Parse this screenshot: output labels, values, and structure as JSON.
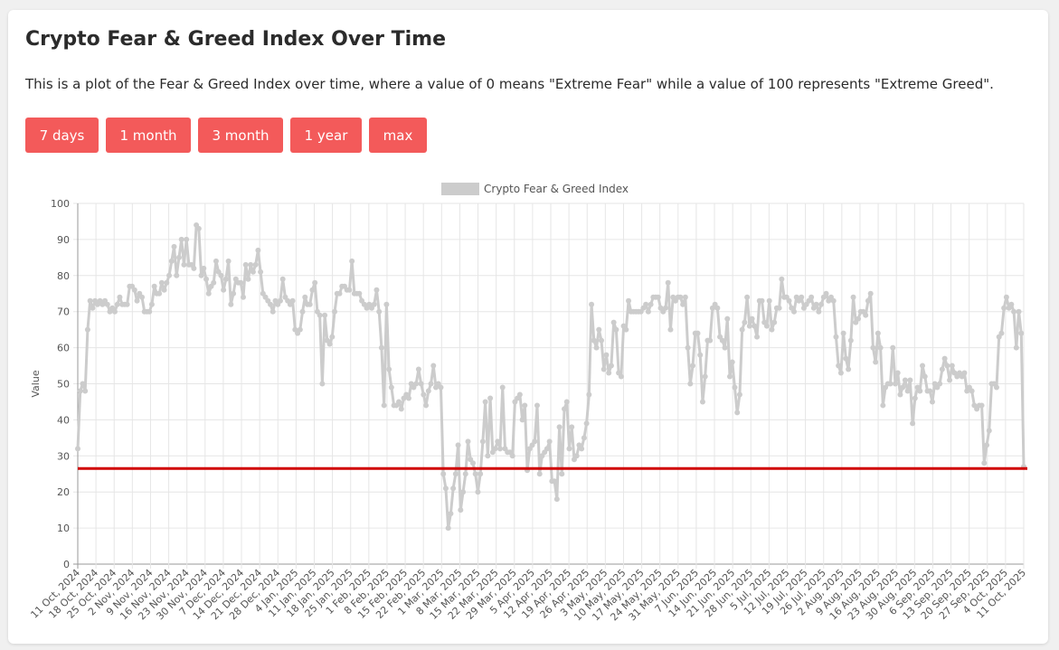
{
  "page": {
    "title": "Crypto Fear & Greed Index Over Time",
    "description": "This is a plot of the Fear & Greed Index over time, where a value of 0 means \"Extreme Fear\" while a value of 100 represents \"Extreme Greed\"."
  },
  "buttons": [
    {
      "label": "7 days"
    },
    {
      "label": "1 month"
    },
    {
      "label": "3 month"
    },
    {
      "label": "1 year"
    },
    {
      "label": "max"
    }
  ],
  "colors": {
    "button": "#f35a5a",
    "series": "#cccccc",
    "reference_line": "#d00000",
    "grid": "#e6e6e6"
  },
  "chart_data": {
    "type": "line",
    "title": "",
    "xlabel": "",
    "ylabel": "Value",
    "ylim": [
      0,
      100
    ],
    "yticks": [
      0,
      10,
      20,
      30,
      40,
      50,
      60,
      70,
      80,
      90,
      100
    ],
    "grid": true,
    "legend_position": "top",
    "x_tick_labels": [
      "11 Oct, 2024",
      "18 Oct, 2024",
      "25 Oct, 2024",
      "2 Nov, 2024",
      "9 Nov, 2024",
      "16 Nov, 2024",
      "23 Nov, 2024",
      "30 Nov, 2024",
      "7 Dec, 2024",
      "14 Dec, 2024",
      "21 Dec, 2024",
      "28 Dec, 2024",
      "4 Jan, 2025",
      "11 Jan, 2025",
      "18 Jan, 2025",
      "25 Jan, 2025",
      "1 Feb, 2025",
      "8 Feb, 2025",
      "15 Feb, 2025",
      "22 Feb, 2025",
      "1 Mar, 2025",
      "8 Mar, 2025",
      "15 Mar, 2025",
      "22 Mar, 2025",
      "29 Mar, 2025",
      "5 Apr, 2025",
      "12 Apr, 2025",
      "19 Apr, 2025",
      "26 Apr, 2025",
      "3 May, 2025",
      "10 May, 2025",
      "17 May, 2025",
      "24 May, 2025",
      "31 May, 2025",
      "7 Jun, 2025",
      "14 Jun, 2025",
      "21 Jun, 2025",
      "28 Jun, 2025",
      "5 Jul, 2025",
      "12 Jul, 2025",
      "19 Jul, 2025",
      "26 Jul, 2025",
      "2 Aug, 2025",
      "9 Aug, 2025",
      "16 Aug, 2025",
      "23 Aug, 2025",
      "30 Aug, 2025",
      "6 Sep, 2025",
      "13 Sep, 2025",
      "20 Sep, 2025",
      "27 Sep, 2025",
      "4 Oct, 2025",
      "11 Oct, 2025"
    ],
    "reference_line": {
      "value": 26.5
    },
    "series": [
      {
        "name": "Crypto Fear & Greed Index",
        "values": [
          32,
          48,
          50,
          48,
          65,
          73,
          71,
          73,
          72,
          73,
          72,
          73,
          72,
          70,
          71,
          70,
          72,
          74,
          72,
          72,
          72,
          77,
          77,
          76,
          73,
          75,
          74,
          70,
          70,
          70,
          72,
          77,
          75,
          75,
          78,
          76,
          78,
          80,
          84,
          88,
          80,
          85,
          90,
          83,
          90,
          83,
          83,
          82,
          94,
          93,
          80,
          82,
          79,
          75,
          77,
          78,
          84,
          81,
          80,
          76,
          79,
          84,
          72,
          75,
          79,
          78,
          78,
          74,
          83,
          79,
          83,
          81,
          83,
          87,
          81,
          75,
          74,
          73,
          72,
          70,
          73,
          72,
          73,
          79,
          74,
          73,
          72,
          73,
          65,
          64,
          65,
          70,
          74,
          72,
          72,
          76,
          78,
          70,
          69,
          50,
          69,
          62,
          61,
          63,
          70,
          75,
          75,
          77,
          77,
          76,
          76,
          84,
          75,
          75,
          75,
          73,
          72,
          71,
          72,
          71,
          72,
          76,
          70,
          60,
          44,
          72,
          54,
          49,
          44,
          44,
          45,
          43,
          46,
          47,
          46,
          50,
          49,
          50,
          54,
          50,
          47,
          44,
          48,
          50,
          55,
          49,
          50,
          49,
          25,
          21,
          10,
          14,
          21,
          25,
          33,
          15,
          20,
          25,
          34,
          29,
          28,
          25,
          20,
          25,
          34,
          45,
          30,
          46,
          31,
          32,
          34,
          32,
          49,
          32,
          31,
          31,
          30,
          45,
          46,
          47,
          40,
          44,
          26,
          32,
          33,
          34,
          44,
          25,
          30,
          31,
          32,
          34,
          23,
          23,
          18,
          38,
          25,
          43,
          45,
          32,
          38,
          29,
          30,
          33,
          32,
          35,
          39,
          47,
          72,
          62,
          60,
          65,
          62,
          54,
          58,
          53,
          55,
          67,
          65,
          53,
          52,
          66,
          65,
          73,
          70,
          70,
          70,
          70,
          70,
          71,
          72,
          70,
          72,
          74,
          74,
          74,
          71,
          70,
          71,
          78,
          65,
          74,
          73,
          74,
          74,
          72,
          74,
          60,
          50,
          55,
          64,
          64,
          58,
          45,
          52,
          62,
          62,
          71,
          72,
          71,
          63,
          62,
          60,
          68,
          52,
          56,
          49,
          42,
          47,
          65,
          67,
          74,
          66,
          68,
          66,
          63,
          73,
          73,
          67,
          66,
          73,
          65,
          67,
          71,
          71,
          79,
          74,
          74,
          73,
          71,
          70,
          74,
          73,
          74,
          71,
          72,
          73,
          74,
          71,
          72,
          70,
          72,
          74,
          75,
          73,
          74,
          73,
          63,
          55,
          53,
          64,
          57,
          54,
          62,
          74,
          67,
          68,
          70,
          70,
          69,
          73,
          75,
          60,
          56,
          64,
          60,
          44,
          49,
          50,
          50,
          60,
          50,
          53,
          47,
          49,
          51,
          48,
          51,
          39,
          46,
          49,
          48,
          55,
          52,
          48,
          48,
          45,
          50,
          49,
          50,
          54,
          57,
          55,
          51,
          55,
          53,
          52,
          53,
          52,
          53,
          48,
          49,
          48,
          44,
          43,
          44,
          44,
          28,
          33,
          37,
          50,
          50,
          49,
          63,
          64,
          71,
          74,
          71,
          72,
          70,
          60,
          70,
          64,
          27
        ]
      }
    ]
  }
}
